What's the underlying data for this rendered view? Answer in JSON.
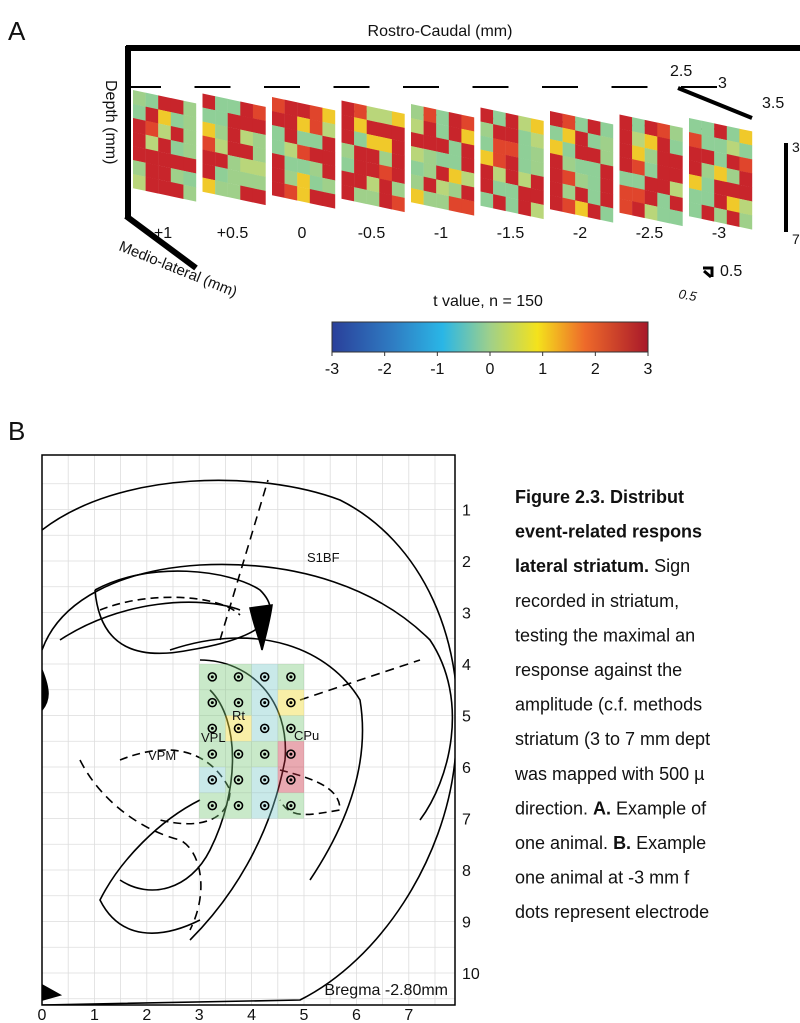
{
  "panel_a": {
    "letter": "A",
    "rostro_caudal": "Rostro-Caudal (mm)",
    "depth": "Depth (mm)",
    "medio_lateral": "Medio-lateral (mm)",
    "rc_scale": [
      "2.5",
      "3",
      "3.5"
    ],
    "depth_scale": [
      "3",
      "7"
    ],
    "slices": [
      "+1",
      "+0.5",
      "0",
      "-0.5",
      "-1",
      "-1.5",
      "-2",
      "-2.5",
      "-3"
    ],
    "scale_bar": [
      "0.5",
      "0.5"
    ],
    "colorbar": {
      "title": "t value, n = 150",
      "lim": [
        -3,
        3
      ],
      "ticks": [
        -3,
        -2,
        -1,
        0,
        1,
        2,
        3
      ]
    }
  },
  "panel_b": {
    "letter": "B",
    "yticks": [
      1,
      2,
      3,
      4,
      5,
      6,
      7,
      8,
      9,
      10
    ],
    "xticks": [
      0,
      1,
      2,
      3,
      4,
      5,
      6,
      7
    ],
    "regions": [
      "S1BF",
      "Rt",
      "VPL",
      "VPM",
      "CPu"
    ],
    "bregma": "Bregma -2.80mm"
  },
  "caption": [
    [
      {
        "text": "Figure 2.3. Distribut",
        "bold": true
      }
    ],
    [
      {
        "text": "event-related respons",
        "bold": true
      }
    ],
    [
      {
        "text": "lateral striatum.",
        "bold": true
      },
      {
        "text": " Sign",
        "bold": false
      }
    ],
    [
      {
        "text": "recorded in striatum,",
        "bold": false
      }
    ],
    [
      {
        "text": "testing the maximal an",
        "bold": false
      }
    ],
    [
      {
        "text": "response against the",
        "bold": false
      }
    ],
    [
      {
        "text": "amplitude (c.f. methods",
        "bold": false
      }
    ],
    [
      {
        "text": "striatum (3 to 7 mm dept",
        "bold": false
      }
    ],
    [
      {
        "text": "was mapped with 500 µ",
        "bold": false
      }
    ],
    [
      {
        "text": "direction. ",
        "bold": false
      },
      {
        "text": "A.",
        "bold": true
      },
      {
        "text": " Example of",
        "bold": false
      }
    ],
    [
      {
        "text": "one animal. ",
        "bold": false
      },
      {
        "text": "B.",
        "bold": true
      },
      {
        "text": " Example",
        "bold": false
      }
    ],
    [
      {
        "text": "one animal at -3 mm f",
        "bold": false
      }
    ],
    [
      {
        "text": "dots represent electrode",
        "bold": false
      }
    ]
  ]
}
